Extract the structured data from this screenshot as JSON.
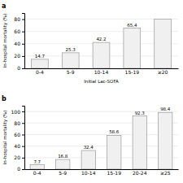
{
  "chart_data": [
    {
      "type": "bar",
      "title": "a",
      "categories": [
        "0-4",
        "5-9",
        "10-14",
        "15-19",
        "≥20"
      ],
      "values": [
        14.7,
        25.3,
        42.2,
        65.4,
        80.0
      ],
      "value_labels": [
        "14.7",
        "25.3",
        "42.2",
        "65.4",
        null
      ],
      "data_labels": true,
      "xlabel": "Initial Lac-SOFA",
      "ylabel": "In-hospital mortality (%)",
      "ylim": [
        0,
        90
      ],
      "yticks": [
        0,
        20,
        40,
        60,
        80
      ],
      "color": "#f0f0f0",
      "grid": true
    },
    {
      "type": "bar",
      "title": "b",
      "categories": [
        "0-4",
        "5-9",
        "10-14",
        "15-19",
        "20-24",
        "≥25"
      ],
      "values": [
        7.7,
        16.8,
        32.4,
        58.6,
        92.3,
        98.4
      ],
      "data_labels": true,
      "ylabel": "In-hospital mortality (%)",
      "ylim": [
        0,
        110
      ],
      "yticks": [
        0,
        20,
        40,
        60,
        80,
        100
      ],
      "color": "#f0f0f0",
      "grid": true
    }
  ]
}
